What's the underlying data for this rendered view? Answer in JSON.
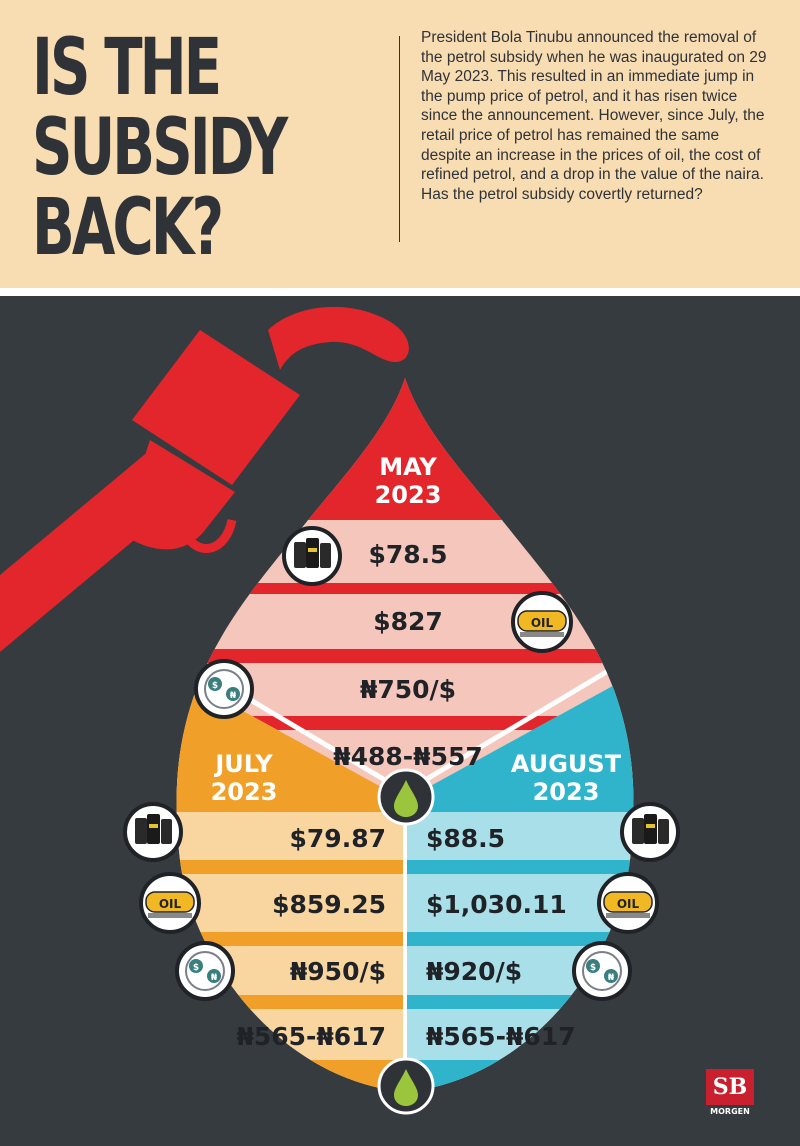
{
  "headline": [
    "IS THE",
    "SUBSIDY",
    "BACK?"
  ],
  "intro": "President Bola Tinubu announced the removal of the petrol subsidy when he was inaugurated on 29 May 2023. This resulted in an immediate jump in the pump price of petrol, and it has risen twice since the announcement. However, since July, the retail price of petrol has remained the same despite an increase in the prices of oil, the cost of refined petrol, and a drop in the value of the naira. Has the petrol subsidy covertly returned?",
  "may": {
    "label_line1": "MAY",
    "label_line2": "2023",
    "oil": "$78.5",
    "refined": "$827",
    "fx": "₦750/$",
    "pump": "₦488-₦557"
  },
  "july": {
    "label_line1": "JULY",
    "label_line2": "2023",
    "oil": "$79.87",
    "refined": "$859.25",
    "fx": "₦950/$",
    "pump": "₦565-₦617"
  },
  "august": {
    "label_line1": "AUGUST",
    "label_line2": "2023",
    "oil": "$88.5",
    "refined": "$1,030.11",
    "fx": "₦920/$",
    "pump": "₦565-₦617"
  },
  "icon_text": {
    "oil_tank": "OIL",
    "fx_dollar": "$",
    "fx_naira": "₦"
  },
  "logo": {
    "mark": "SB",
    "name": "MORGEN"
  },
  "colors": {
    "background": "#363b40",
    "header": "#f8dcb2",
    "red": "#e3262b",
    "pink": "#f5c6bb",
    "orange": "#f0a029",
    "light_orange": "#f9d5a0",
    "cyan": "#2fb4cc",
    "light_cyan": "#a9dfe8",
    "dark_text": "#1f2226"
  }
}
